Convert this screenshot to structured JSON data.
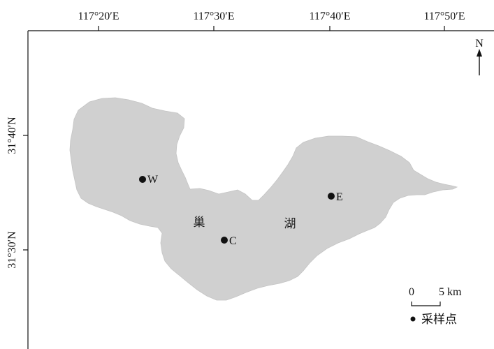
{
  "axes": {
    "longitude_labels": [
      "117°20′E",
      "117°30′E",
      "117°40′E",
      "117°50′E"
    ],
    "latitude_labels": [
      "31°40′N",
      "31°30′N"
    ]
  },
  "north_arrow": {
    "label": "N"
  },
  "lake": {
    "name_chars": [
      "巢",
      "湖"
    ],
    "fill_color": "#d0d0d0"
  },
  "sampling_points": [
    {
      "id": "W",
      "label": "W"
    },
    {
      "id": "C",
      "label": "C"
    },
    {
      "id": "E",
      "label": "E"
    }
  ],
  "scale_bar": {
    "start": "0",
    "end": "5 km"
  },
  "legend": {
    "symbol": "point-marker",
    "label": "采样点"
  }
}
